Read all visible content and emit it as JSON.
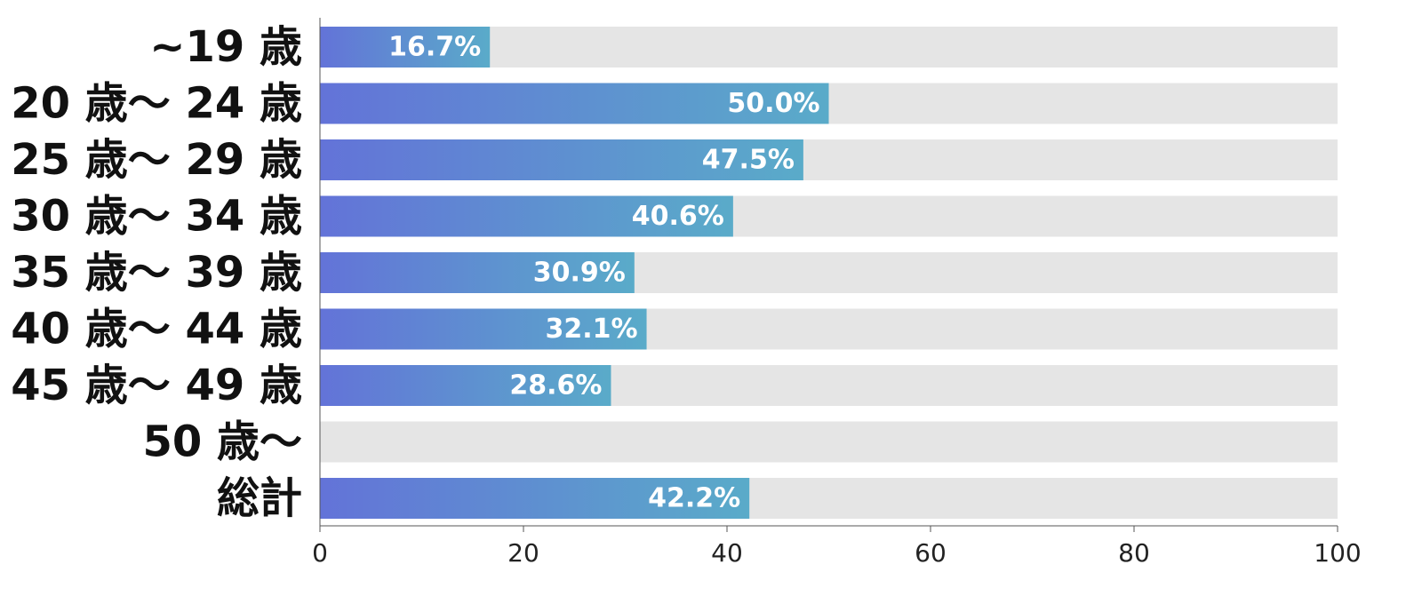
{
  "chart_data": {
    "type": "bar",
    "orientation": "horizontal",
    "title": "",
    "xlabel": "",
    "ylabel": "",
    "categories": [
      "~19 歳",
      "20 歳～ 24 歳",
      "25 歳～ 29 歳",
      "30 歳～ 34 歳",
      "35 歳～ 39 歳",
      "40 歳～ 44 歳",
      "45 歳～ 49 歳",
      "50 歳～",
      "総計"
    ],
    "values": [
      16.7,
      50.0,
      47.5,
      40.6,
      30.9,
      32.1,
      28.6,
      null,
      42.2
    ],
    "value_labels": [
      "16.7%",
      "50.0%",
      "47.5%",
      "40.6%",
      "30.9%",
      "32.1%",
      "28.6%",
      "",
      "42.2%"
    ],
    "xlim": [
      0,
      100
    ],
    "xticks": [
      0,
      20,
      40,
      60,
      80,
      100
    ],
    "grid": false,
    "legend": "none",
    "colors": {
      "bar_gradient_start": "#6373d8",
      "bar_gradient_end": "#5aabc9",
      "track": "#e5e5e5",
      "value_text": "#ffffff",
      "axis": "#555555"
    }
  }
}
